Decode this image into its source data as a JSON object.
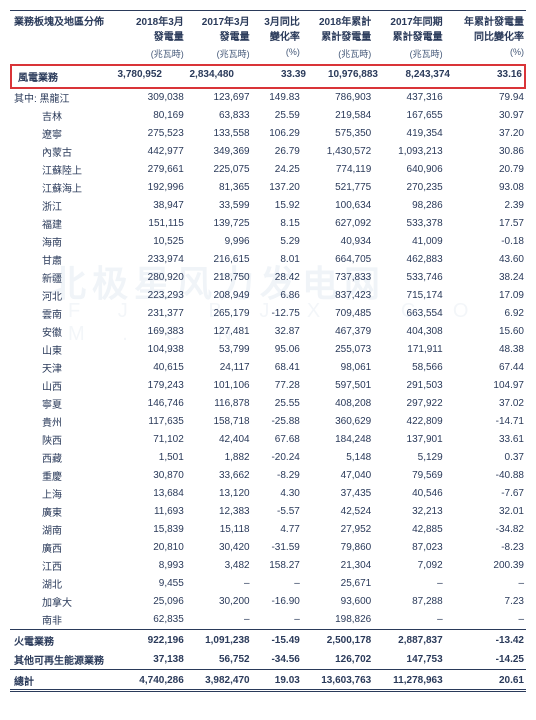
{
  "watermark": {
    "line1": "北极星风力发电网",
    "line2": "F J . B J X . C O M . C N"
  },
  "colors": {
    "text": "#2a3a5a",
    "highlight_border": "#d93438",
    "border": "#2a3a5a",
    "watermark": "#f0f4f8",
    "background": "#ffffff"
  },
  "typography": {
    "base_fontsize": 10,
    "header_fontsize": 10,
    "sub_fontsize": 9,
    "font_family": "SimSun"
  },
  "header": {
    "col1": "業務板塊及地區分佈",
    "cols": [
      "2018年3月\n發電量",
      "2017年3月\n發電量",
      "3月同比\n變化率",
      "2018年累計\n累計發電量",
      "2017年同期\n累計發電量",
      "年累計發電量\n同比變化率"
    ],
    "units": [
      "(兆瓦時)",
      "(兆瓦時)",
      "(%)",
      "(兆瓦時)",
      "(兆瓦時)",
      "(%)"
    ]
  },
  "highlight": {
    "label": "風電業務",
    "v": [
      "3,780,952",
      "2,834,480",
      "33.39",
      "10,976,883",
      "8,243,374",
      "33.16"
    ]
  },
  "sublabel": "其中: 黑龍江",
  "rows": [
    {
      "l": "黑龍江",
      "first": true,
      "v": [
        "309,038",
        "123,697",
        "149.83",
        "786,903",
        "437,316",
        "79.94"
      ]
    },
    {
      "l": "吉林",
      "v": [
        "80,169",
        "63,833",
        "25.59",
        "219,584",
        "167,655",
        "30.97"
      ]
    },
    {
      "l": "遼寧",
      "v": [
        "275,523",
        "133,558",
        "106.29",
        "575,350",
        "419,354",
        "37.20"
      ]
    },
    {
      "l": "內蒙古",
      "v": [
        "442,977",
        "349,369",
        "26.79",
        "1,430,572",
        "1,093,213",
        "30.86"
      ]
    },
    {
      "l": "江蘇陸上",
      "v": [
        "279,661",
        "225,075",
        "24.25",
        "774,119",
        "640,906",
        "20.79"
      ]
    },
    {
      "l": "江蘇海上",
      "v": [
        "192,996",
        "81,365",
        "137.20",
        "521,775",
        "270,235",
        "93.08"
      ]
    },
    {
      "l": "浙江",
      "v": [
        "38,947",
        "33,599",
        "15.92",
        "100,634",
        "98,286",
        "2.39"
      ]
    },
    {
      "l": "福建",
      "v": [
        "151,115",
        "139,725",
        "8.15",
        "627,092",
        "533,378",
        "17.57"
      ]
    },
    {
      "l": "海南",
      "v": [
        "10,525",
        "9,996",
        "5.29",
        "40,934",
        "41,009",
        "-0.18"
      ]
    },
    {
      "l": "甘肅",
      "v": [
        "233,974",
        "216,615",
        "8.01",
        "664,705",
        "462,883",
        "43.60"
      ]
    },
    {
      "l": "新疆",
      "v": [
        "280,920",
        "218,750",
        "28.42",
        "737,833",
        "533,746",
        "38.24"
      ]
    },
    {
      "l": "河北",
      "v": [
        "223,293",
        "208,949",
        "6.86",
        "837,423",
        "715,174",
        "17.09"
      ]
    },
    {
      "l": "雲南",
      "v": [
        "231,377",
        "265,179",
        "-12.75",
        "709,485",
        "663,554",
        "6.92"
      ]
    },
    {
      "l": "安徽",
      "v": [
        "169,383",
        "127,481",
        "32.87",
        "467,379",
        "404,308",
        "15.60"
      ]
    },
    {
      "l": "山東",
      "v": [
        "104,938",
        "53,799",
        "95.06",
        "255,073",
        "171,911",
        "48.38"
      ]
    },
    {
      "l": "天津",
      "v": [
        "40,615",
        "24,117",
        "68.41",
        "98,061",
        "58,566",
        "67.44"
      ]
    },
    {
      "l": "山西",
      "v": [
        "179,243",
        "101,106",
        "77.28",
        "597,501",
        "291,503",
        "104.97"
      ]
    },
    {
      "l": "寧夏",
      "v": [
        "146,746",
        "116,878",
        "25.55",
        "408,208",
        "297,922",
        "37.02"
      ]
    },
    {
      "l": "貴州",
      "v": [
        "117,635",
        "158,718",
        "-25.88",
        "360,629",
        "422,809",
        "-14.71"
      ]
    },
    {
      "l": "陝西",
      "v": [
        "71,102",
        "42,404",
        "67.68",
        "184,248",
        "137,901",
        "33.61"
      ]
    },
    {
      "l": "西藏",
      "v": [
        "1,501",
        "1,882",
        "-20.24",
        "5,148",
        "5,129",
        "0.37"
      ]
    },
    {
      "l": "重慶",
      "v": [
        "30,870",
        "33,662",
        "-8.29",
        "47,040",
        "79,569",
        "-40.88"
      ]
    },
    {
      "l": "上海",
      "v": [
        "13,684",
        "13,120",
        "4.30",
        "37,435",
        "40,546",
        "-7.67"
      ]
    },
    {
      "l": "廣東",
      "v": [
        "11,693",
        "12,383",
        "-5.57",
        "42,524",
        "32,213",
        "32.01"
      ]
    },
    {
      "l": "湖南",
      "v": [
        "15,839",
        "15,118",
        "4.77",
        "27,952",
        "42,885",
        "-34.82"
      ]
    },
    {
      "l": "廣西",
      "v": [
        "20,810",
        "30,420",
        "-31.59",
        "79,860",
        "87,023",
        "-8.23"
      ]
    },
    {
      "l": "江西",
      "v": [
        "8,993",
        "3,482",
        "158.27",
        "21,304",
        "7,092",
        "200.39"
      ]
    },
    {
      "l": "湖北",
      "v": [
        "9,455",
        "–",
        "–",
        "25,671",
        "–",
        "–"
      ]
    },
    {
      "l": "加拿大",
      "v": [
        "25,096",
        "30,200",
        "-16.90",
        "93,600",
        "87,288",
        "7.23"
      ]
    },
    {
      "l": "南非",
      "v": [
        "62,835",
        "–",
        "–",
        "198,826",
        "–",
        "–"
      ]
    }
  ],
  "section2": {
    "l": "火電業務",
    "v": [
      "922,196",
      "1,091,238",
      "-15.49",
      "2,500,178",
      "2,887,837",
      "-13.42"
    ]
  },
  "section3": {
    "l": "其他可再生能源業務",
    "v": [
      "37,138",
      "56,752",
      "-34.56",
      "126,702",
      "147,753",
      "-14.25"
    ]
  },
  "total": {
    "l": "總計",
    "v": [
      "4,740,286",
      "3,982,470",
      "19.03",
      "13,603,763",
      "11,278,963",
      "20.61"
    ]
  }
}
